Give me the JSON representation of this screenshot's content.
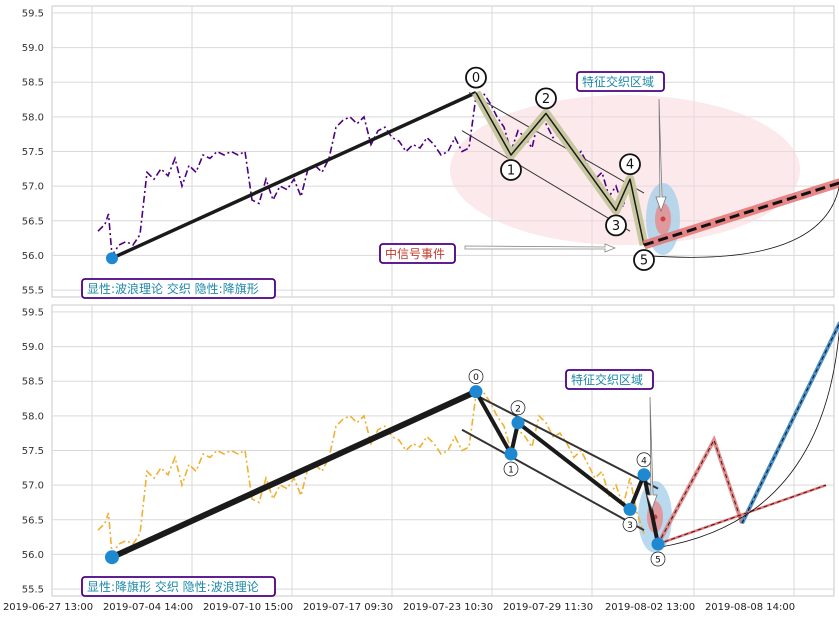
{
  "chart_data": [
    {
      "type": "line",
      "panel": "top",
      "ylim": [
        55.4,
        59.6
      ],
      "y_ticks": [
        "55.5",
        "56.0",
        "56.5",
        "57.0",
        "57.5",
        "58.0",
        "58.5",
        "59.0",
        "59.5"
      ],
      "price_color": "#4b0082",
      "price_series": [
        [
          0,
          56.35
        ],
        [
          1,
          56.45
        ],
        [
          1.5,
          56.6
        ],
        [
          2,
          56.0
        ],
        [
          3,
          56.15
        ],
        [
          4,
          56.2
        ],
        [
          5,
          56.15
        ],
        [
          6,
          56.3
        ],
        [
          7,
          57.2
        ],
        [
          8,
          57.1
        ],
        [
          9,
          57.25
        ],
        [
          10,
          57.15
        ],
        [
          11,
          57.4
        ],
        [
          12,
          57.0
        ],
        [
          13,
          57.3
        ],
        [
          14,
          57.2
        ],
        [
          15,
          57.45
        ],
        [
          16,
          57.4
        ],
        [
          17,
          57.5
        ],
        [
          18,
          57.45
        ],
        [
          19,
          57.5
        ],
        [
          20,
          57.45
        ],
        [
          21,
          57.5
        ],
        [
          22,
          56.8
        ],
        [
          23,
          56.75
        ],
        [
          24,
          57.1
        ],
        [
          25,
          56.8
        ],
        [
          26,
          57.0
        ],
        [
          27,
          56.95
        ],
        [
          28,
          57.1
        ],
        [
          29,
          56.85
        ],
        [
          30,
          57.25
        ],
        [
          31,
          57.3
        ],
        [
          32,
          57.2
        ],
        [
          33,
          57.4
        ],
        [
          34,
          57.85
        ],
        [
          35,
          57.95
        ],
        [
          36,
          58.0
        ],
        [
          37,
          57.9
        ],
        [
          38,
          58.0
        ],
        [
          39,
          57.6
        ],
        [
          40,
          57.8
        ],
        [
          41,
          57.85
        ],
        [
          42,
          57.7
        ],
        [
          43,
          57.65
        ],
        [
          44,
          57.5
        ],
        [
          45,
          57.6
        ],
        [
          46,
          57.55
        ],
        [
          47,
          57.7
        ],
        [
          48,
          57.6
        ],
        [
          49,
          57.45
        ],
        [
          50,
          57.5
        ],
        [
          51,
          57.7
        ],
        [
          52,
          57.5
        ],
        [
          53,
          57.55
        ],
        [
          54,
          58.3
        ],
        [
          55,
          58.35
        ],
        [
          56,
          58.2
        ],
        [
          57,
          58.0
        ],
        [
          58,
          57.85
        ],
        [
          59,
          57.5
        ],
        [
          60,
          57.8
        ],
        [
          61,
          57.7
        ],
        [
          62,
          57.55
        ],
        [
          63,
          58.0
        ],
        [
          64,
          57.9
        ],
        [
          65,
          57.7
        ],
        [
          66,
          57.75
        ],
        [
          67,
          57.6
        ],
        [
          68,
          57.4
        ],
        [
          69,
          57.5
        ],
        [
          70,
          57.3
        ],
        [
          71,
          57.1
        ],
        [
          72,
          57.2
        ],
        [
          73,
          56.85
        ],
        [
          74,
          57.0
        ],
        [
          75,
          56.7
        ],
        [
          76,
          57.1
        ],
        [
          77,
          56.6
        ],
        [
          78,
          56.3
        ]
      ],
      "wave_pivots": {
        "x": [
          54,
          59,
          64,
          74,
          76,
          78
        ],
        "y": [
          58.35,
          57.45,
          58.05,
          56.65,
          57.1,
          56.15
        ],
        "labels": [
          "0",
          "1",
          "2",
          "3",
          "4",
          "5"
        ]
      },
      "prediction_line": {
        "x": [
          78,
          106
        ],
        "y": [
          56.15,
          57.05
        ]
      },
      "text_box": "显性:波浪理论 交织 隐性:降旗形",
      "annotation_feature": "特征交织区域",
      "annotation_signal": "中信号事件"
    },
    {
      "type": "line",
      "panel": "bottom",
      "ylim": [
        55.4,
        59.6
      ],
      "y_ticks": [
        "55.5",
        "56.0",
        "56.5",
        "57.0",
        "57.5",
        "58.0",
        "58.5",
        "59.0",
        "59.5"
      ],
      "price_color": "#f0b030",
      "wave_pivots": {
        "x": [
          54,
          59,
          60,
          76,
          78,
          80
        ],
        "y": [
          58.35,
          57.45,
          57.9,
          56.65,
          57.15,
          56.15
        ],
        "labels": [
          "0",
          "1",
          "2",
          "3",
          "4",
          "5"
        ]
      },
      "prediction_zigzag": {
        "x": [
          80,
          88,
          92,
          106
        ],
        "y": [
          56.15,
          57.65,
          56.45,
          59.35
        ]
      },
      "text_box": "显性:降旗形 交织 隐性:波浪理论",
      "annotation_feature": "特征交织区域"
    }
  ],
  "x_axis": {
    "tick_labels": [
      "2019-06-27 13:00",
      "2019-07-04 14:00",
      "2019-07-10 15:00",
      "2019-07-17 09:30",
      "2019-07-23 10:30",
      "2019-07-29 11:30",
      "2019-08-02 13:00",
      "2019-08-08 14:00"
    ]
  },
  "colors": {
    "grid": "#d9d9d9",
    "wave_line": "#1a1a1a",
    "wave_band": "#c8c8a0",
    "marker": "#1e88d0",
    "prediction": "#e57373",
    "prediction_blue": "#4a90c8",
    "box_border": "#4b0082",
    "box_text_blue": "#1e88a8",
    "box_text_red": "#c0392b",
    "ellipse": "#f8d7dd"
  }
}
